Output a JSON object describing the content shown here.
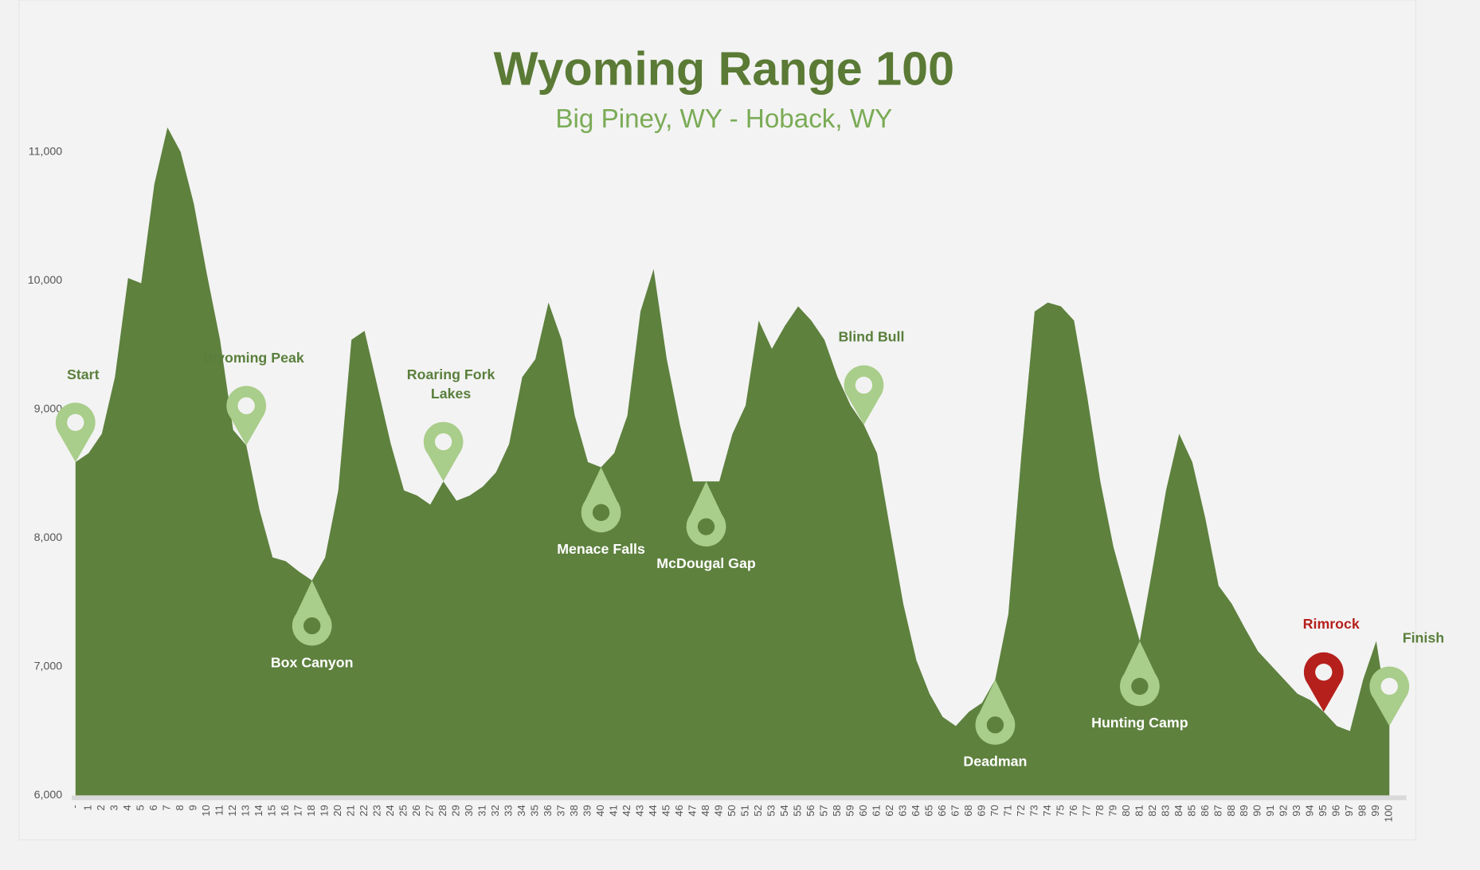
{
  "chart_data": {
    "type": "area",
    "title": "Wyoming Range 100",
    "subtitle": "Big Piney, WY - Hoback, WY",
    "color": "#5e813e",
    "categories": [
      "-",
      "1",
      "2",
      "3",
      "4",
      "5",
      "6",
      "7",
      "8",
      "9",
      "10",
      "11",
      "12",
      "13",
      "14",
      "15",
      "16",
      "17",
      "18",
      "19",
      "20",
      "21",
      "22",
      "23",
      "24",
      "25",
      "26",
      "27",
      "28",
      "29",
      "30",
      "31",
      "32",
      "33",
      "34",
      "35",
      "36",
      "37",
      "38",
      "39",
      "40",
      "41",
      "42",
      "43",
      "44",
      "45",
      "46",
      "47",
      "48",
      "49",
      "50",
      "51",
      "52",
      "53",
      "54",
      "55",
      "56",
      "57",
      "58",
      "59",
      "60",
      "61",
      "62",
      "63",
      "64",
      "65",
      "66",
      "67",
      "68",
      "69",
      "70",
      "71",
      "72",
      "73",
      "74",
      "75",
      "76",
      "77",
      "78",
      "79",
      "80",
      "81",
      "82",
      "83",
      "84",
      "85",
      "86",
      "87",
      "88",
      "89",
      "90",
      "91",
      "92",
      "93",
      "94",
      "95",
      "96",
      "97",
      "98",
      "99",
      "100"
    ],
    "values": [
      8590,
      8660,
      8810,
      9250,
      10020,
      9980,
      10750,
      11190,
      11000,
      10600,
      10050,
      9540,
      8840,
      8720,
      8220,
      7850,
      7820,
      7740,
      7670,
      7850,
      8370,
      9540,
      9610,
      9170,
      8730,
      8370,
      8330,
      8260,
      8440,
      8290,
      8330,
      8400,
      8510,
      8730,
      9250,
      9390,
      9830,
      9540,
      8950,
      8590,
      8550,
      8660,
      8950,
      9760,
      10090,
      9390,
      8880,
      8440,
      8440,
      8440,
      8810,
      9030,
      9690,
      9470,
      9650,
      9800,
      9690,
      9540,
      9250,
      9030,
      8880,
      8660,
      8070,
      7490,
      7050,
      6790,
      6610,
      6540,
      6650,
      6720,
      6900,
      7410,
      8660,
      9760,
      9830,
      9800,
      9690,
      9100,
      8440,
      7930,
      7560,
      7200,
      7780,
      8370,
      8810,
      8590,
      8150,
      7630,
      7490,
      7300,
      7120,
      7010,
      6900,
      6790,
      6740,
      6650,
      6540,
      6500,
      6900,
      7200,
      6540
    ],
    "ylim": [
      6000,
      11500
    ],
    "yticks": [
      {
        "value": 6000,
        "label": "6,000"
      },
      {
        "value": 7000,
        "label": "7,000"
      },
      {
        "value": 8000,
        "label": "8,000"
      },
      {
        "value": 9000,
        "label": "9,000"
      },
      {
        "value": 10000,
        "label": "10,000"
      },
      {
        "value": 11000,
        "label": "11,000"
      }
    ],
    "annotations": [
      {
        "label": "Start",
        "index": 0,
        "style": "above",
        "color": "#a9cd8a"
      },
      {
        "label": "Wyoming Peak",
        "index": 13,
        "style": "above",
        "color": "#a9cd8a"
      },
      {
        "label": "Box Canyon",
        "index": 18,
        "style": "below",
        "color": "#a9cd8a"
      },
      {
        "label": "Roaring Fork Lakes",
        "index": 28,
        "style": "above",
        "color": "#a9cd8a"
      },
      {
        "label": "Menace Falls",
        "index": 40,
        "style": "below",
        "color": "#a9cd8a"
      },
      {
        "label": "McDougal Gap",
        "index": 48,
        "style": "below",
        "color": "#a9cd8a"
      },
      {
        "label": "Blind Bull",
        "index": 60,
        "style": "above",
        "color": "#a9cd8a"
      },
      {
        "label": "Deadman",
        "index": 70,
        "style": "below",
        "color": "#a9cd8a"
      },
      {
        "label": "Hunting Camp",
        "index": 81,
        "style": "below",
        "color": "#a9cd8a"
      },
      {
        "label": "Rimrock",
        "index": 95,
        "style": "above",
        "color": "#b5201c"
      },
      {
        "label": "Finish",
        "index": 100,
        "style": "above",
        "color": "#a9cd8a"
      }
    ]
  }
}
